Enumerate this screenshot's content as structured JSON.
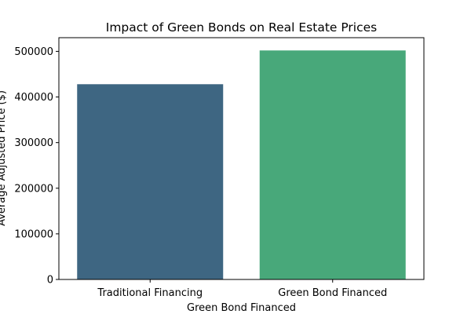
{
  "chart_data": {
    "type": "bar",
    "title": "Impact of Green Bonds on Real Estate Prices",
    "xlabel": "Green Bond Financed",
    "ylabel": "Average Adjusted Price ($)",
    "categories": [
      "Traditional Financing",
      "Green Bond Financed"
    ],
    "values": [
      428000,
      502000
    ],
    "colors": [
      "#3e6682",
      "#48a87a"
    ],
    "ylim": [
      0,
      530000
    ],
    "yticks": [
      0,
      100000,
      200000,
      300000,
      400000,
      500000
    ],
    "ytick_labels": [
      "0",
      "100000",
      "200000",
      "300000",
      "400000",
      "500000"
    ],
    "grid": false,
    "legend": "none"
  }
}
